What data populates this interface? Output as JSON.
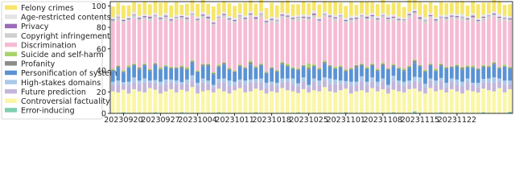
{
  "chart_data": {
    "type": "stacked_bar",
    "categories": [
      null,
      null,
      "20230920",
      null,
      null,
      null,
      null,
      null,
      null,
      "20230927",
      null,
      null,
      null,
      null,
      null,
      null,
      "20231004",
      null,
      null,
      null,
      null,
      null,
      null,
      "20231011",
      null,
      null,
      null,
      null,
      null,
      null,
      "20231018",
      null,
      null,
      null,
      null,
      null,
      null,
      "20231025",
      null,
      null,
      null,
      null,
      null,
      null,
      "20231101",
      null,
      null,
      null,
      null,
      null,
      null,
      "20231108",
      null,
      null,
      null,
      null,
      null,
      null,
      "20231115",
      null,
      null,
      null,
      null,
      null,
      null,
      "20231122",
      null,
      null,
      null,
      null,
      null,
      null,
      null,
      null,
      null,
      null
    ],
    "ylim": [
      0,
      104
    ],
    "yticks": [
      0,
      20,
      40,
      60,
      80,
      100
    ],
    "legend": "outside-left",
    "series": [
      {
        "name": "Error-inducing",
        "color": "#7fcfb0",
        "values": [
          0.5,
          0.5,
          1,
          0.5,
          0.5,
          0.5,
          0.5,
          0.5,
          1,
          0.5,
          0.5,
          0.5,
          0.5,
          1,
          0.5,
          0.5,
          0.5,
          0.5,
          0.5,
          0.5,
          1,
          0.5,
          0.5,
          0.5,
          0.5,
          0.5,
          0.5,
          1,
          0.5,
          0.5,
          0.5,
          0.5,
          0.5,
          0.5,
          0.5,
          1,
          0.5,
          0.5,
          0.5,
          0.5,
          0.5,
          0.5,
          0.5,
          0.5,
          1,
          0.5,
          0.5,
          0.5,
          0.5,
          0.5,
          0.5,
          0.5,
          0.5,
          1,
          0.5,
          0.5,
          0.5,
          2,
          0.5,
          0.5,
          0.5,
          0.5,
          1,
          0.5,
          0.5,
          0.5,
          0.5,
          0.5,
          0.5,
          0.5,
          1,
          0.5,
          0.5,
          0.5,
          0.5,
          1.5
        ]
      },
      {
        "name": "Controversial factuality",
        "color": "#fbf6a6",
        "values": [
          20,
          19,
          21,
          18,
          22,
          20,
          19,
          23,
          21,
          18,
          20,
          22,
          19,
          21,
          20,
          24,
          18,
          20,
          21,
          19,
          22,
          20,
          18,
          21,
          23,
          19,
          20,
          22,
          21,
          18,
          20,
          19,
          23,
          21,
          20,
          18,
          22,
          19,
          21,
          20,
          24,
          20,
          19,
          21,
          22,
          18,
          20,
          21,
          19,
          23,
          20,
          22,
          18,
          21,
          20,
          19,
          22,
          21,
          20,
          18,
          23,
          20,
          21,
          19,
          22,
          20,
          18,
          21,
          20,
          19,
          22,
          21,
          20,
          23,
          19,
          21
        ]
      },
      {
        "name": "Future prediction",
        "color": "#c3b5da",
        "values": [
          6,
          7,
          5,
          8,
          6,
          7,
          9,
          5,
          6,
          7,
          7,
          6,
          8,
          5,
          7,
          6,
          7,
          8,
          6,
          5,
          6,
          8,
          7,
          5,
          6,
          7,
          8,
          6,
          7,
          5,
          7,
          6,
          5,
          8,
          7,
          6,
          7,
          5,
          8,
          6,
          6,
          7,
          8,
          6,
          5,
          7,
          6,
          8,
          7,
          6,
          5,
          7,
          6,
          8,
          7,
          6,
          5,
          7,
          8,
          6,
          7,
          6,
          8,
          5,
          7,
          6,
          7,
          8,
          6,
          5,
          6,
          7,
          8,
          6,
          7,
          5
        ]
      },
      {
        "name": "High-stakes domains",
        "color": "#abc8ea",
        "values": [
          3,
          4,
          2,
          3,
          5,
          3,
          4,
          2,
          3,
          4,
          4,
          3,
          3,
          2,
          4,
          5,
          3,
          4,
          3,
          2,
          3,
          4,
          5,
          3,
          2,
          4,
          3,
          3,
          4,
          5,
          2,
          3,
          4,
          3,
          5,
          3,
          4,
          2,
          3,
          4,
          3,
          5,
          4,
          3,
          2,
          4,
          3,
          5,
          3,
          4,
          4,
          3,
          2,
          5,
          3,
          4,
          3,
          4,
          5,
          3,
          2,
          4,
          3,
          4,
          3,
          5,
          4,
          3,
          2,
          4,
          3,
          4,
          5,
          3,
          4,
          3
        ]
      },
      {
        "name": "Personification of system",
        "color": "#5a92d4",
        "values": [
          10,
          12,
          9,
          13,
          11,
          10,
          12,
          9,
          14,
          11,
          12,
          10,
          11,
          13,
          9,
          12,
          10,
          11,
          14,
          10,
          11,
          13,
          10,
          9,
          12,
          11,
          14,
          10,
          12,
          9,
          12,
          10,
          13,
          11,
          9,
          12,
          10,
          14,
          11,
          10,
          13,
          11,
          10,
          12,
          9,
          11,
          13,
          10,
          12,
          11,
          10,
          12,
          14,
          9,
          11,
          10,
          12,
          13,
          10,
          11,
          12,
          9,
          11,
          13,
          10,
          12,
          11,
          10,
          14,
          12,
          11,
          10,
          12,
          9,
          13,
          11
        ]
      },
      {
        "name": "Profanity",
        "color": "#8c8c8c",
        "values": [
          1,
          1.5,
          1,
          0.5,
          1,
          2,
          1,
          1,
          1.5,
          1,
          0.5,
          1,
          1,
          1.5,
          1,
          1,
          0.5,
          2,
          1,
          1,
          1,
          1.5,
          1,
          0.5,
          1,
          1,
          2,
          1,
          1,
          0.5,
          1,
          1,
          1.5,
          1,
          0.5,
          1,
          1,
          2,
          1,
          1,
          1.5,
          1,
          0.5,
          1,
          1,
          1,
          2,
          1,
          0.5,
          1,
          1,
          1.5,
          1,
          1,
          0.5,
          1,
          1,
          2,
          1,
          1,
          1,
          0.5,
          1.5,
          1,
          1,
          1,
          2,
          1,
          0.5,
          1,
          1,
          1,
          1.5,
          1,
          0.5,
          1
        ]
      },
      {
        "name": "Suicide and self-harm",
        "color": "#a9d46b",
        "values": [
          1,
          0.5,
          1,
          1.5,
          1,
          0.5,
          1,
          1,
          0.5,
          1.5,
          1,
          1,
          0.5,
          1,
          1.5,
          1,
          1,
          0.5,
          1,
          1,
          1.5,
          0.5,
          1,
          1,
          1,
          0.5,
          1.5,
          1,
          1,
          1,
          0.5,
          1,
          1,
          1.5,
          1,
          1,
          0.5,
          4,
          1,
          1,
          1,
          0.5,
          1.5,
          1,
          1,
          1,
          0.5,
          1,
          1.5,
          1,
          1,
          1,
          0.5,
          1,
          1,
          1.5,
          1,
          1,
          0.5,
          1,
          1,
          1.5,
          1,
          1,
          0.5,
          1,
          1,
          1,
          1.5,
          0.5,
          1,
          1,
          1,
          0.5,
          1.5,
          1
        ]
      },
      {
        "name": "Discrimination",
        "color": "#f6bbd4",
        "values": [
          43,
          42,
          44,
          41,
          42,
          43,
          41,
          44,
          42,
          43,
          42,
          41,
          44,
          43,
          42,
          41,
          45,
          42,
          40,
          43,
          42,
          41,
          43,
          44,
          42,
          43,
          41,
          42,
          43,
          44,
          42,
          43,
          41,
          42,
          43,
          44,
          42,
          40,
          43,
          42,
          41,
          43,
          42,
          44,
          43,
          42,
          41,
          42,
          43,
          41,
          44,
          42,
          43,
          41,
          42,
          43,
          44,
          42,
          41,
          43,
          42,
          43,
          41,
          42,
          44,
          42,
          43,
          41,
          43,
          42,
          41,
          44,
          42,
          43,
          41,
          42
        ]
      },
      {
        "name": "Copyright infringement",
        "color": "#cfcfcf",
        "values": [
          2,
          3,
          2,
          2,
          3,
          2,
          2,
          3,
          2,
          2,
          3,
          2,
          2,
          2,
          3,
          2,
          2,
          3,
          2,
          2,
          2,
          3,
          2,
          2,
          3,
          2,
          2,
          2,
          3,
          2,
          2,
          3,
          2,
          2,
          2,
          3,
          2,
          2,
          3,
          2,
          2,
          2,
          3,
          2,
          2,
          3,
          2,
          2,
          2,
          3,
          2,
          2,
          3,
          2,
          2,
          2,
          3,
          2,
          2,
          3,
          2,
          2,
          2,
          3,
          2,
          2,
          3,
          2,
          2,
          2,
          3,
          2,
          2,
          3,
          2,
          2
        ]
      },
      {
        "name": "Privacy",
        "color": "#9c6ab8",
        "values": [
          1,
          0.5,
          1,
          1,
          0.5,
          1,
          1,
          1.5,
          0.5,
          1,
          1,
          1,
          0.5,
          1,
          1,
          0.5,
          1,
          1,
          1.5,
          1,
          0.5,
          1,
          1,
          1,
          0.5,
          1,
          1,
          1.5,
          0.5,
          1,
          1,
          0.5,
          1,
          1,
          1,
          0.5,
          1,
          1,
          1.5,
          1,
          0.5,
          1,
          1,
          0.5,
          1,
          1,
          1,
          0.5,
          1.5,
          1,
          1,
          0.5,
          1,
          1,
          1,
          0.5,
          1,
          1,
          1.5,
          0.5,
          1,
          1,
          0.5,
          1,
          1,
          1,
          0.5,
          1,
          1.5,
          1,
          1,
          0.5,
          1,
          1,
          0.5,
          1
        ]
      },
      {
        "name": "Age-restricted contents",
        "color": "#e4e4e4",
        "values": [
          2,
          2,
          1.5,
          2,
          2.5,
          2,
          2,
          1.5,
          2,
          2,
          2.5,
          2,
          2,
          1.5,
          2,
          2,
          2,
          2.5,
          2,
          2,
          1.5,
          2,
          2,
          2,
          2.5,
          2,
          2,
          1.5,
          2,
          2,
          2,
          2.5,
          2,
          2,
          1.5,
          2,
          2,
          2,
          2.5,
          2,
          2,
          1.5,
          2,
          2,
          2,
          2.5,
          2,
          2,
          1.5,
          2,
          2,
          2,
          2.5,
          2,
          2,
          1.5,
          2,
          2,
          2,
          2.5,
          2,
          2,
          1.5,
          2,
          2,
          2,
          2.5,
          2,
          2,
          1.5,
          2,
          2,
          2,
          2.5,
          2,
          2
        ]
      },
      {
        "name": "Felony crimes",
        "color": "#f6e66a",
        "values": [
          10,
          11,
          12,
          10,
          9,
          11,
          12,
          10,
          11,
          12,
          10,
          11,
          12,
          9,
          11,
          10,
          12,
          11,
          10,
          13,
          11,
          10,
          12,
          11,
          9,
          12,
          10,
          11,
          12,
          10,
          13,
          11,
          10,
          12,
          11,
          10,
          12,
          11,
          9,
          12,
          10,
          11,
          12,
          10,
          11,
          13,
          10,
          11,
          12,
          10,
          11,
          12,
          10,
          11,
          13,
          10,
          11,
          10,
          12,
          12,
          10,
          11,
          12,
          11,
          10,
          11,
          12,
          10,
          11,
          13,
          11,
          10,
          11,
          12,
          10,
          11
        ]
      }
    ]
  }
}
